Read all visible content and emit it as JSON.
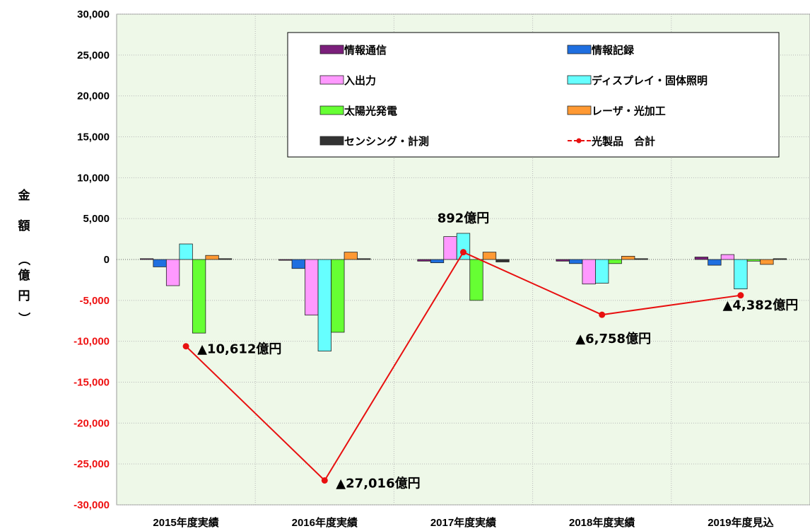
{
  "chart_data": {
    "type": "bar",
    "title": "",
    "xlabel": "",
    "ylabel": "金額（億円）",
    "ylim": [
      -30000,
      30000
    ],
    "ytick_step": 5000,
    "ytick_labels": [
      "30,000",
      "25,000",
      "20,000",
      "15,000",
      "10,000",
      "5,000",
      "0",
      "-5,000",
      "-10,000",
      "-15,000",
      "-20,000",
      "-25,000",
      "-30,000"
    ],
    "categories": [
      "2015年度実績",
      "2016年度実績",
      "2017年度実績",
      "2018年度実績",
      "2019年度見込"
    ],
    "grid": true,
    "legend_position": "top-center",
    "series": [
      {
        "name": "情報通信",
        "color": "#7b1f7b",
        "values": [
          100,
          -100,
          -200,
          -200,
          300
        ]
      },
      {
        "name": "情報記録",
        "color": "#1f6fe0",
        "values": [
          -900,
          -1100,
          -400,
          -500,
          -700
        ]
      },
      {
        "name": "入出力",
        "color": "#ff99ff",
        "values": [
          -3200,
          -6800,
          2800,
          -3000,
          600
        ]
      },
      {
        "name": "ディスプレイ・固体照明",
        "color": "#66ffff",
        "values": [
          1900,
          -11200,
          3200,
          -2900,
          -3600
        ]
      },
      {
        "name": "太陽光発電",
        "color": "#66ff33",
        "values": [
          -9000,
          -8900,
          -5000,
          -500,
          -200
        ]
      },
      {
        "name": "レーザ・光加工",
        "color": "#ff9933",
        "values": [
          500,
          900,
          900,
          400,
          -600
        ]
      },
      {
        "name": "センシング・計測",
        "color": "#333333",
        "values": [
          100,
          100,
          -300,
          100,
          100
        ]
      }
    ],
    "total_line": {
      "name": "光製品　合計",
      "color": "#e81010",
      "values": [
        -10612,
        -27016,
        892,
        -6758,
        -4382
      ],
      "labels": [
        "▲10,612億円",
        "▲27,016億円",
        "892億円",
        "▲6,758億円",
        "▲4,382億円"
      ]
    }
  }
}
